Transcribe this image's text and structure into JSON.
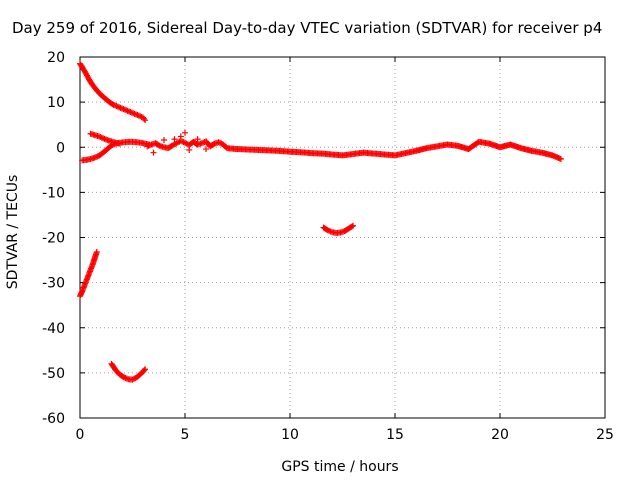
{
  "chart_data": {
    "type": "scatter",
    "title": "Day 259 of 2016, Sidereal Day-to-day VTEC variation (SDTVAR) for receiver p4",
    "xlabel": "GPS time / hours",
    "ylabel": "SDTVAR / TECUs",
    "xlim": [
      0,
      25
    ],
    "ylim": [
      -60,
      20
    ],
    "x_ticks": [
      0,
      5,
      10,
      15,
      20,
      25
    ],
    "y_ticks": [
      -60,
      -50,
      -40,
      -30,
      -20,
      -10,
      0,
      10,
      20
    ],
    "x_tick_labels": [
      "0",
      "5",
      "10",
      "15",
      "20",
      "25"
    ],
    "y_tick_labels": [
      "-60",
      "-50",
      "-40",
      "-30",
      "-20",
      "-10",
      "0",
      "10",
      "20"
    ],
    "grid": true,
    "legend": "none",
    "marker": "plus",
    "color": "#ff0000",
    "series": [
      {
        "name": "arc-high-decreasing",
        "x": [
          0.0,
          0.1,
          0.2,
          0.3,
          0.4,
          0.5,
          0.6,
          0.8,
          1.0,
          1.2,
          1.4,
          1.6,
          1.8,
          2.0,
          2.2,
          2.4,
          2.6,
          2.8,
          3.0,
          3.1
        ],
        "y": [
          18.5,
          17.8,
          17.0,
          16.2,
          15.3,
          14.5,
          13.8,
          12.6,
          11.6,
          10.8,
          10.0,
          9.4,
          9.0,
          8.6,
          8.2,
          7.8,
          7.4,
          7.0,
          6.6,
          6.0
        ]
      },
      {
        "name": "arc-near-zero-rising",
        "x": [
          0.1,
          0.3,
          0.5,
          0.7,
          0.9,
          1.1,
          1.3,
          1.5,
          1.7,
          1.9,
          2.1,
          2.3,
          2.5,
          2.7,
          2.9,
          3.1,
          3.3
        ],
        "y": [
          -2.9,
          -2.8,
          -2.6,
          -2.3,
          -1.9,
          -1.2,
          -0.4,
          0.4,
          0.8,
          1.0,
          1.1,
          1.2,
          1.2,
          1.1,
          1.0,
          0.8,
          0.6
        ]
      },
      {
        "name": "arc-small-positive-falling",
        "x": [
          0.5,
          0.7,
          0.9,
          1.1,
          1.3,
          1.5,
          1.7,
          1.9
        ],
        "y": [
          3.0,
          2.7,
          2.4,
          2.0,
          1.6,
          1.3,
          1.0,
          0.8
        ]
      },
      {
        "name": "arc-main-long",
        "x": [
          3.2,
          3.4,
          3.6,
          3.8,
          4.0,
          4.2,
          4.4,
          4.6,
          4.8,
          5.0,
          5.2,
          5.4,
          5.6,
          5.8,
          6.0,
          6.2,
          6.4,
          6.6,
          6.8,
          7.0,
          7.5,
          8.0,
          8.5,
          9.0,
          9.5,
          10.0,
          10.5,
          11.0,
          11.5,
          12.0,
          12.5,
          13.0,
          13.5,
          14.0,
          14.5,
          15.0,
          15.5,
          16.0,
          16.5,
          17.0,
          17.5,
          18.0,
          18.5,
          19.0,
          19.5,
          20.0,
          20.5,
          21.0,
          21.5,
          22.0,
          22.5,
          22.9
        ],
        "y": [
          0.2,
          0.6,
          0.9,
          0.3,
          0.0,
          -0.2,
          0.4,
          0.9,
          1.4,
          1.0,
          0.5,
          1.2,
          0.6,
          0.9,
          1.3,
          0.2,
          0.8,
          1.1,
          0.7,
          -0.2,
          -0.4,
          -0.5,
          -0.6,
          -0.7,
          -0.8,
          -1.0,
          -1.1,
          -1.3,
          -1.4,
          -1.6,
          -1.8,
          -1.5,
          -1.2,
          -1.4,
          -1.6,
          -1.8,
          -1.3,
          -0.8,
          -0.2,
          0.2,
          0.6,
          0.3,
          -0.4,
          1.2,
          0.8,
          0.0,
          0.6,
          -0.2,
          -0.8,
          -1.2,
          -1.8,
          -2.6
        ]
      },
      {
        "name": "scatter-marks-around-5h",
        "x": [
          3.5,
          4.0,
          4.5,
          4.8,
          5.0,
          5.2,
          5.6,
          6.0
        ],
        "y": [
          -1.2,
          1.6,
          1.8,
          2.4,
          3.2,
          -0.6,
          1.8,
          -0.4
        ]
      },
      {
        "name": "arc-low-rising",
        "x": [
          0.0,
          0.1,
          0.2,
          0.3,
          0.4,
          0.5,
          0.6,
          0.7,
          0.8
        ],
        "y": [
          -33.0,
          -32.0,
          -30.8,
          -29.6,
          -28.4,
          -27.2,
          -26.0,
          -24.6,
          -23.2
        ]
      },
      {
        "name": "arc-small-dip-12h",
        "x": [
          11.6,
          11.8,
          12.0,
          12.2,
          12.4,
          12.6,
          12.8,
          13.0
        ],
        "y": [
          -17.8,
          -18.4,
          -18.8,
          -19.0,
          -18.9,
          -18.6,
          -18.0,
          -17.4
        ]
      },
      {
        "name": "arc-bottom-dip",
        "x": [
          1.5,
          1.7,
          1.9,
          2.1,
          2.3,
          2.5,
          2.7,
          2.9,
          3.1
        ],
        "y": [
          -48.0,
          -49.4,
          -50.4,
          -51.0,
          -51.4,
          -51.5,
          -51.0,
          -50.2,
          -49.2
        ]
      }
    ]
  }
}
